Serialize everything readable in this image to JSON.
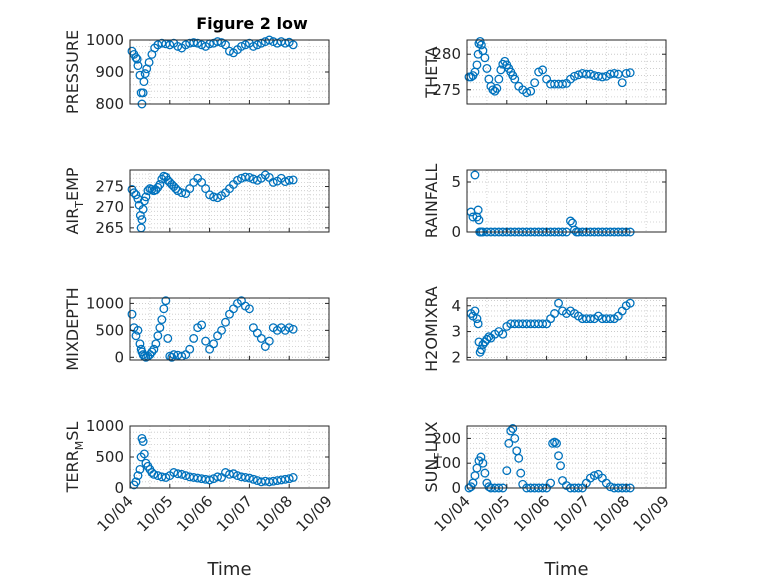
{
  "colors": {
    "marker": "#0072bd",
    "axes": "#262626",
    "grid": "#c8c8c8"
  },
  "chart_data": [
    {
      "type": "scatter",
      "title": "Figure 2 low",
      "ylabel": "PRESSURE",
      "ylim": [
        800,
        1000
      ],
      "yticks": [
        "800",
        "900",
        "1000"
      ],
      "xlim": [
        0,
        5
      ],
      "x": [
        0.05,
        0.1,
        0.15,
        0.18,
        0.2,
        0.25,
        0.28,
        0.3,
        0.33,
        0.35,
        0.38,
        0.42,
        0.48,
        0.55,
        0.62,
        0.7,
        0.8,
        0.9,
        1.0,
        1.1,
        1.2,
        1.3,
        1.4,
        1.5,
        1.6,
        1.7,
        1.8,
        1.9,
        2.0,
        2.1,
        2.2,
        2.3,
        2.4,
        2.5,
        2.6,
        2.7,
        2.8,
        2.9,
        3.0,
        3.1,
        3.2,
        3.3,
        3.4,
        3.5,
        3.6,
        3.7,
        3.8,
        3.9,
        4.0,
        4.1
      ],
      "y": [
        965,
        955,
        945,
        940,
        920,
        890,
        835,
        800,
        835,
        870,
        895,
        910,
        930,
        955,
        975,
        985,
        990,
        988,
        985,
        990,
        980,
        975,
        985,
        990,
        992,
        990,
        985,
        980,
        988,
        990,
        995,
        992,
        985,
        965,
        960,
        970,
        980,
        985,
        990,
        980,
        985,
        990,
        995,
        1000,
        995,
        990,
        995,
        990,
        993,
        985
      ]
    },
    {
      "type": "scatter",
      "title": "",
      "ylabel": "THETA",
      "ylim": [
        273,
        282
      ],
      "yticks": [
        "275",
        "280"
      ],
      "xlim": [
        0,
        5
      ],
      "x": [
        0.05,
        0.1,
        0.15,
        0.2,
        0.25,
        0.28,
        0.3,
        0.33,
        0.36,
        0.4,
        0.45,
        0.5,
        0.55,
        0.6,
        0.65,
        0.7,
        0.75,
        0.8,
        0.85,
        0.9,
        0.95,
        1.0,
        1.05,
        1.1,
        1.15,
        1.2,
        1.3,
        1.4,
        1.5,
        1.6,
        1.7,
        1.8,
        1.9,
        2.0,
        2.1,
        2.2,
        2.3,
        2.4,
        2.5,
        2.6,
        2.7,
        2.8,
        2.9,
        3.0,
        3.1,
        3.2,
        3.3,
        3.4,
        3.5,
        3.6,
        3.7,
        3.8,
        3.9,
        4.0,
        4.1
      ],
      "y": [
        276.8,
        276.8,
        277,
        277.5,
        278.5,
        280,
        281.5,
        281.8,
        281.3,
        280.5,
        279.5,
        278,
        276.5,
        275.5,
        275,
        274.8,
        275.2,
        276.5,
        277.8,
        278.6,
        279,
        278.5,
        278,
        277.5,
        277,
        276.5,
        275.5,
        275,
        274.6,
        274.8,
        276,
        277.5,
        277.8,
        276.5,
        275.8,
        275.8,
        275.8,
        275.8,
        275.9,
        276.5,
        276.9,
        277.1,
        277.3,
        277.2,
        277.2,
        277,
        276.9,
        276.8,
        276.9,
        277.2,
        277.3,
        277.2,
        276,
        277.3,
        277.4
      ]
    },
    {
      "type": "scatter",
      "title": "",
      "ylabel": "AIR_TEMP",
      "ylim": [
        264,
        279
      ],
      "yticks": [
        "265",
        "270",
        "275"
      ],
      "xlim": [
        0,
        5
      ],
      "x": [
        0.05,
        0.1,
        0.15,
        0.2,
        0.23,
        0.26,
        0.28,
        0.3,
        0.33,
        0.36,
        0.4,
        0.45,
        0.5,
        0.55,
        0.6,
        0.65,
        0.7,
        0.75,
        0.8,
        0.85,
        0.9,
        0.95,
        1.0,
        1.05,
        1.1,
        1.15,
        1.2,
        1.3,
        1.4,
        1.5,
        1.6,
        1.7,
        1.8,
        1.9,
        2.0,
        2.1,
        2.2,
        2.3,
        2.4,
        2.5,
        2.6,
        2.7,
        2.8,
        2.9,
        3.0,
        3.1,
        3.2,
        3.3,
        3.4,
        3.5,
        3.6,
        3.7,
        3.8,
        3.9,
        4.0,
        4.1
      ],
      "y": [
        274.3,
        273.5,
        273,
        272,
        270.5,
        268,
        265,
        267,
        269.5,
        271.5,
        272.5,
        274,
        274.5,
        274.3,
        274,
        274.2,
        274.8,
        275.5,
        276.8,
        277.5,
        277.3,
        276.5,
        276,
        275.5,
        275,
        274.5,
        274,
        273.5,
        273.3,
        274.5,
        276,
        277,
        276,
        274.5,
        273,
        272.5,
        272.3,
        272.8,
        273.5,
        274.5,
        275.5,
        276.5,
        277,
        277.3,
        277.2,
        276.8,
        276.5,
        277,
        277.8,
        277.2,
        276,
        276.3,
        277,
        276.2,
        276.5,
        276.6
      ]
    },
    {
      "type": "scatter",
      "title": "",
      "ylabel": "RAINFALL",
      "ylim": [
        0,
        6.2
      ],
      "yticks": [
        "0",
        "5"
      ],
      "xlim": [
        0,
        5
      ],
      "x": [
        0.1,
        0.15,
        0.2,
        0.25,
        0.28,
        0.3,
        0.32,
        0.34,
        0.36,
        0.4,
        0.5,
        0.6,
        0.7,
        0.8,
        0.9,
        1.0,
        1.1,
        1.2,
        1.3,
        1.4,
        1.5,
        1.6,
        1.7,
        1.8,
        1.9,
        2.0,
        2.1,
        2.2,
        2.3,
        2.4,
        2.5,
        2.6,
        2.65,
        2.7,
        2.75,
        2.8,
        2.9,
        3.0,
        3.1,
        3.2,
        3.3,
        3.4,
        3.5,
        3.6,
        3.7,
        3.8,
        3.9,
        4.0,
        4.1
      ],
      "y": [
        2,
        1.5,
        5.7,
        1.5,
        2.2,
        1.2,
        0,
        0,
        0,
        0,
        0,
        0,
        0,
        0,
        0,
        0,
        0,
        0,
        0,
        0,
        0,
        0,
        0,
        0,
        0,
        0,
        0,
        0,
        0,
        0,
        0,
        1.1,
        0.9,
        0.2,
        0,
        0,
        0,
        0,
        0,
        0,
        0,
        0,
        0,
        0,
        0,
        0,
        0,
        0,
        0
      ]
    },
    {
      "type": "scatter",
      "title": "",
      "ylabel": "MIXDEPTH",
      "ylim": [
        -50,
        1100
      ],
      "yticks": [
        "0",
        "500",
        "1000"
      ],
      "xlim": [
        0,
        5
      ],
      "x": [
        0.05,
        0.1,
        0.15,
        0.2,
        0.25,
        0.28,
        0.3,
        0.33,
        0.36,
        0.4,
        0.45,
        0.5,
        0.55,
        0.6,
        0.65,
        0.7,
        0.75,
        0.8,
        0.85,
        0.9,
        0.95,
        1.0,
        1.05,
        1.1,
        1.2,
        1.3,
        1.4,
        1.5,
        1.6,
        1.7,
        1.8,
        1.9,
        2.0,
        2.1,
        2.2,
        2.3,
        2.4,
        2.5,
        2.6,
        2.7,
        2.8,
        2.9,
        3.0,
        3.1,
        3.2,
        3.3,
        3.4,
        3.5,
        3.6,
        3.7,
        3.8,
        3.9,
        4.0,
        4.1
      ],
      "y": [
        800,
        550,
        400,
        500,
        250,
        150,
        100,
        50,
        20,
        0,
        20,
        50,
        100,
        150,
        250,
        400,
        550,
        700,
        900,
        1050,
        350,
        20,
        0,
        50,
        40,
        20,
        50,
        150,
        350,
        550,
        600,
        300,
        150,
        250,
        400,
        500,
        650,
        800,
        900,
        1000,
        1050,
        950,
        900,
        550,
        450,
        350,
        200,
        300,
        550,
        500,
        550,
        500,
        550,
        520
      ]
    },
    {
      "type": "scatter",
      "title": "",
      "ylabel": "H2OMIXRA",
      "ylim": [
        1.9,
        4.3
      ],
      "yticks": [
        "2",
        "3",
        "4"
      ],
      "xlim": [
        0,
        5
      ],
      "x": [
        0.1,
        0.15,
        0.2,
        0.25,
        0.28,
        0.3,
        0.33,
        0.36,
        0.4,
        0.45,
        0.5,
        0.55,
        0.6,
        0.7,
        0.8,
        0.9,
        1.0,
        1.1,
        1.2,
        1.3,
        1.4,
        1.5,
        1.6,
        1.7,
        1.8,
        1.9,
        2.0,
        2.1,
        2.2,
        2.3,
        2.4,
        2.5,
        2.6,
        2.7,
        2.8,
        2.9,
        3.0,
        3.1,
        3.2,
        3.3,
        3.4,
        3.5,
        3.6,
        3.7,
        3.8,
        3.9,
        4.0,
        4.1
      ],
      "y": [
        3.7,
        3.6,
        3.8,
        3.5,
        3.3,
        2.6,
        2.2,
        2.3,
        2.5,
        2.6,
        2.7,
        2.8,
        2.75,
        2.9,
        3.0,
        2.9,
        3.2,
        3.3,
        3.3,
        3.3,
        3.3,
        3.3,
        3.3,
        3.3,
        3.3,
        3.3,
        3.3,
        3.5,
        3.7,
        4.1,
        3.8,
        3.7,
        3.8,
        3.7,
        3.6,
        3.5,
        3.5,
        3.5,
        3.5,
        3.6,
        3.5,
        3.5,
        3.5,
        3.5,
        3.6,
        3.8,
        4.0,
        4.1
      ]
    },
    {
      "type": "scatter",
      "title": "",
      "ylabel": "TERR_MSL",
      "ylim": [
        0,
        1000
      ],
      "yticks": [
        "0",
        "500",
        "1000"
      ],
      "xlim": [
        0,
        5
      ],
      "xticks": [
        "10/04",
        "10/05",
        "10/06",
        "10/07",
        "10/08",
        "10/09"
      ],
      "xlabel": "Time",
      "x": [
        0.1,
        0.15,
        0.2,
        0.25,
        0.28,
        0.3,
        0.33,
        0.36,
        0.4,
        0.45,
        0.5,
        0.55,
        0.6,
        0.7,
        0.8,
        0.9,
        1.0,
        1.1,
        1.2,
        1.3,
        1.4,
        1.5,
        1.6,
        1.7,
        1.8,
        1.9,
        2.0,
        2.1,
        2.2,
        2.3,
        2.4,
        2.5,
        2.6,
        2.7,
        2.8,
        2.9,
        3.0,
        3.1,
        3.2,
        3.3,
        3.4,
        3.5,
        3.6,
        3.7,
        3.8,
        3.9,
        4.0,
        4.1
      ],
      "y": [
        50,
        100,
        200,
        300,
        500,
        800,
        750,
        550,
        400,
        350,
        300,
        250,
        220,
        200,
        180,
        170,
        200,
        250,
        230,
        220,
        200,
        180,
        170,
        160,
        150,
        140,
        130,
        150,
        180,
        170,
        250,
        220,
        230,
        200,
        180,
        170,
        160,
        140,
        120,
        100,
        110,
        100,
        110,
        120,
        130,
        140,
        150,
        170
      ]
    },
    {
      "type": "scatter",
      "title": "",
      "ylabel": "SUN_FLUX",
      "ylim": [
        0,
        250
      ],
      "yticks": [
        "0",
        "100",
        "200"
      ],
      "xlim": [
        0,
        5
      ],
      "xticks": [
        "10/04",
        "10/05",
        "10/06",
        "10/07",
        "10/08",
        "10/09"
      ],
      "xlabel": "Time",
      "x": [
        0.05,
        0.1,
        0.15,
        0.2,
        0.25,
        0.3,
        0.35,
        0.4,
        0.45,
        0.5,
        0.55,
        0.6,
        0.7,
        0.8,
        0.9,
        1.0,
        1.05,
        1.1,
        1.15,
        1.2,
        1.25,
        1.3,
        1.35,
        1.4,
        1.5,
        1.6,
        1.7,
        1.8,
        1.9,
        2.0,
        2.1,
        2.15,
        2.2,
        2.25,
        2.3,
        2.35,
        2.4,
        2.5,
        2.6,
        2.7,
        2.8,
        2.9,
        3.0,
        3.1,
        3.2,
        3.3,
        3.4,
        3.5,
        3.6,
        3.7,
        3.8,
        3.9,
        4.0,
        4.1
      ],
      "y": [
        0,
        5,
        20,
        50,
        80,
        110,
        125,
        100,
        60,
        20,
        5,
        0,
        0,
        0,
        0,
        70,
        180,
        230,
        240,
        200,
        150,
        120,
        60,
        15,
        0,
        0,
        0,
        0,
        0,
        0,
        20,
        180,
        185,
        180,
        130,
        90,
        30,
        10,
        0,
        0,
        0,
        0,
        20,
        40,
        50,
        55,
        40,
        20,
        5,
        0,
        0,
        0,
        0,
        0
      ]
    }
  ]
}
